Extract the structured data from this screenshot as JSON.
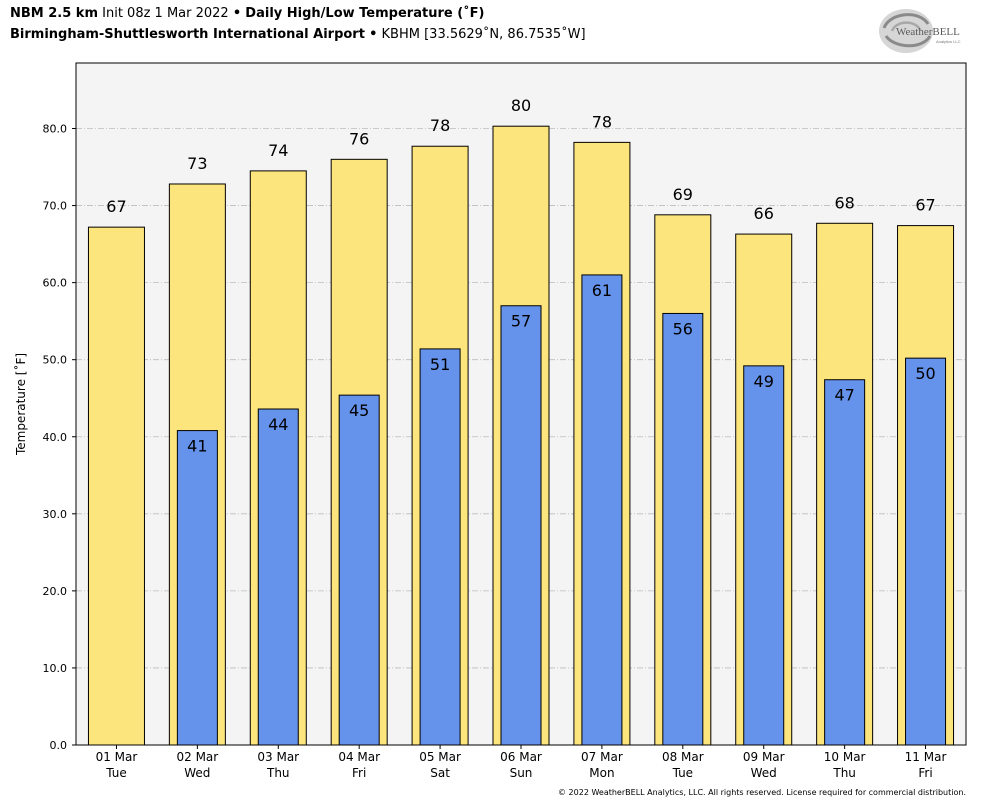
{
  "header": {
    "model": "NBM 2.5 km",
    "init": "Init 08z 1 Mar 2022",
    "bullet": "•",
    "product": "Daily High/Low Temperature (˚F)",
    "station_name": "Birmingham-Shuttlesworth International Airport",
    "station_info": "KBHM [33.5629˚N, 86.7535˚W]"
  },
  "logo": {
    "text_main": "WeatherBELL",
    "text_sub": "Analytics LLC",
    "icon": "swirl-logo"
  },
  "footer": {
    "copyright": "© 2022 WeatherBELL Analytics, LLC. All rights reserved. License required for commercial distribution."
  },
  "chart_data": {
    "type": "bar",
    "ylabel": "Temperature [˚F]",
    "xlabel": "",
    "ylim": [
      0,
      88.5
    ],
    "yticks": [
      0,
      10,
      20,
      30,
      40,
      50,
      60,
      70,
      80
    ],
    "ytick_labels": [
      "0.0",
      "10.0",
      "20.0",
      "30.0",
      "40.0",
      "50.0",
      "60.0",
      "70.0",
      "80.0"
    ],
    "grid": true,
    "categories": [
      "01 Mar",
      "02 Mar",
      "03 Mar",
      "04 Mar",
      "05 Mar",
      "06 Mar",
      "07 Mar",
      "08 Mar",
      "09 Mar",
      "10 Mar",
      "11 Mar"
    ],
    "weekdays": [
      "Tue",
      "Wed",
      "Thu",
      "Fri",
      "Sat",
      "Sun",
      "Mon",
      "Tue",
      "Wed",
      "Thu",
      "Fri"
    ],
    "series": [
      {
        "values": [
          67.2,
          72.8,
          74.5,
          76.0,
          77.7,
          80.3,
          78.2,
          68.8,
          66.3,
          67.7,
          67.4
        ],
        "labels": [
          "67",
          "73",
          "74",
          "76",
          "78",
          "80",
          "78",
          "69",
          "66",
          "68",
          "67"
        ],
        "color": "#fde57d"
      },
      {
        "values": [
          null,
          40.8,
          43.6,
          45.4,
          51.4,
          57.0,
          61.0,
          56.0,
          49.2,
          47.4,
          50.2
        ],
        "labels": [
          null,
          "41",
          "44",
          "45",
          "51",
          "57",
          "61",
          "56",
          "49",
          "47",
          "50"
        ],
        "color": "#6592ea"
      }
    ],
    "colors": {
      "plot_bg": "#f4f4f4",
      "grid": "#bcbcbc",
      "axis": "#000000"
    }
  }
}
